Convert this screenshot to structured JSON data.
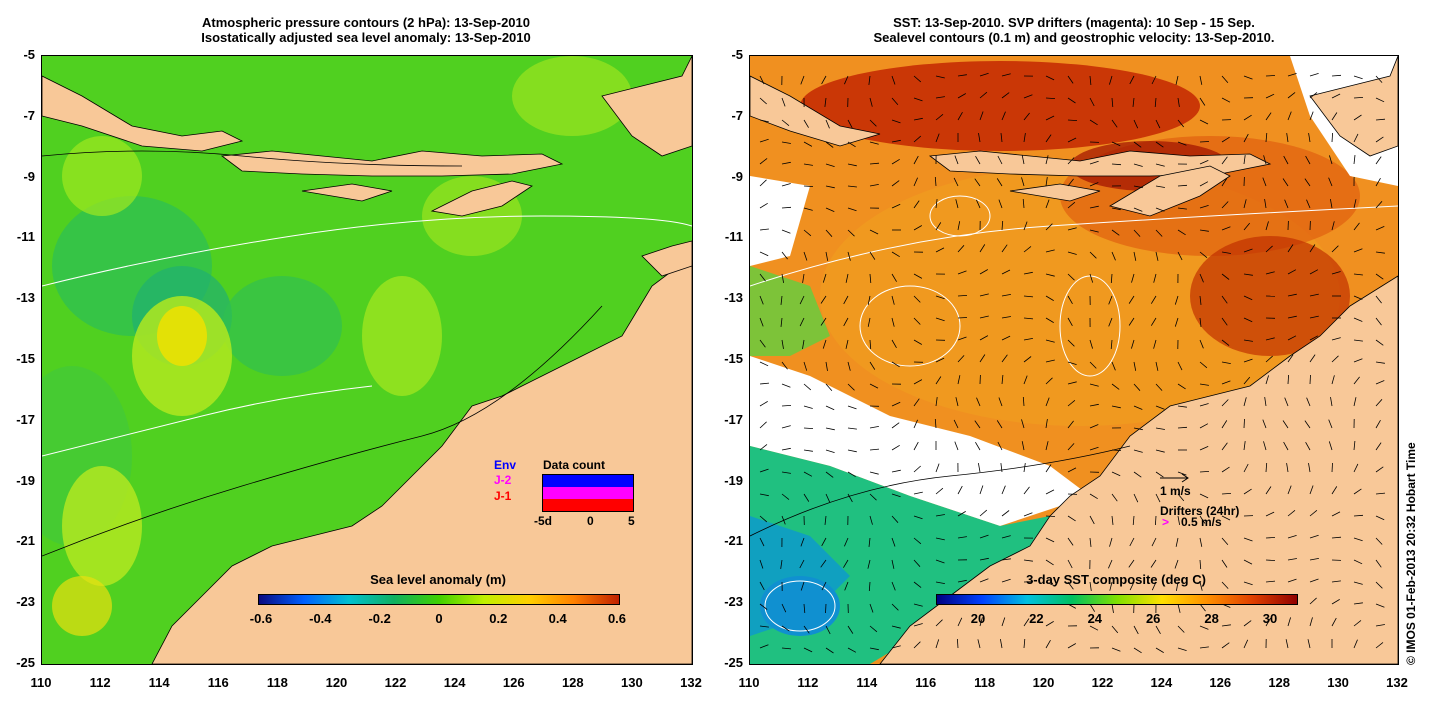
{
  "left": {
    "title_line1": "Atmospheric pressure contours (2 hPa): 13-Sep-2010",
    "title_line2": "Isostatically adjusted sea level anomaly: 13-Sep-2010",
    "colorbar": {
      "title": "Sea level anomaly (m)",
      "ticks": [
        "-0.6",
        "-0.4",
        "-0.2",
        "0",
        "0.2",
        "0.4",
        "0.6"
      ],
      "colors": [
        "#0a0a80",
        "#0060ff",
        "#00c0d0",
        "#10b060",
        "#40d000",
        "#c0f000",
        "#ffd000",
        "#ff8000",
        "#c02000"
      ]
    },
    "data_count": {
      "title": "Data count",
      "legend": [
        "Env",
        "J-2",
        "J-1"
      ],
      "legend_colors": [
        "#0000ff",
        "#ff00ff",
        "#ff0000"
      ],
      "x_ticks": [
        "-5d",
        "0",
        "5"
      ]
    }
  },
  "right": {
    "title_line1": "SST: 13-Sep-2010. SVP drifters (magenta): 10 Sep - 15 Sep.",
    "title_line2": "Sealevel contours (0.1 m) and geostrophic velocity: 13-Sep-2010.",
    "colorbar": {
      "title": "3-day SST composite (deg C)",
      "ticks": [
        "20",
        "22",
        "24",
        "26",
        "28",
        "30"
      ],
      "colors": [
        "#000080",
        "#0040ff",
        "#00c0e0",
        "#00c060",
        "#80e000",
        "#ffe000",
        "#ff9000",
        "#e04000",
        "#900000"
      ]
    },
    "vector_label": "1 m/s",
    "drifters_label": "Drifters (24hr)",
    "drifters_speed": "0.5 m/s",
    "drifters_marker": ">"
  },
  "axes": {
    "x_ticks": [
      "110",
      "112",
      "114",
      "116",
      "118",
      "120",
      "122",
      "124",
      "126",
      "128",
      "130",
      "132"
    ],
    "y_ticks": [
      "-5",
      "-7",
      "-9",
      "-11",
      "-13",
      "-15",
      "-17",
      "-19",
      "-21",
      "-23",
      "-25"
    ]
  },
  "credit": "© IMOS 01-Feb-2013 20:32 Hobart Time",
  "colors": {
    "land": "#f8c898",
    "missing": "#ffffff"
  }
}
